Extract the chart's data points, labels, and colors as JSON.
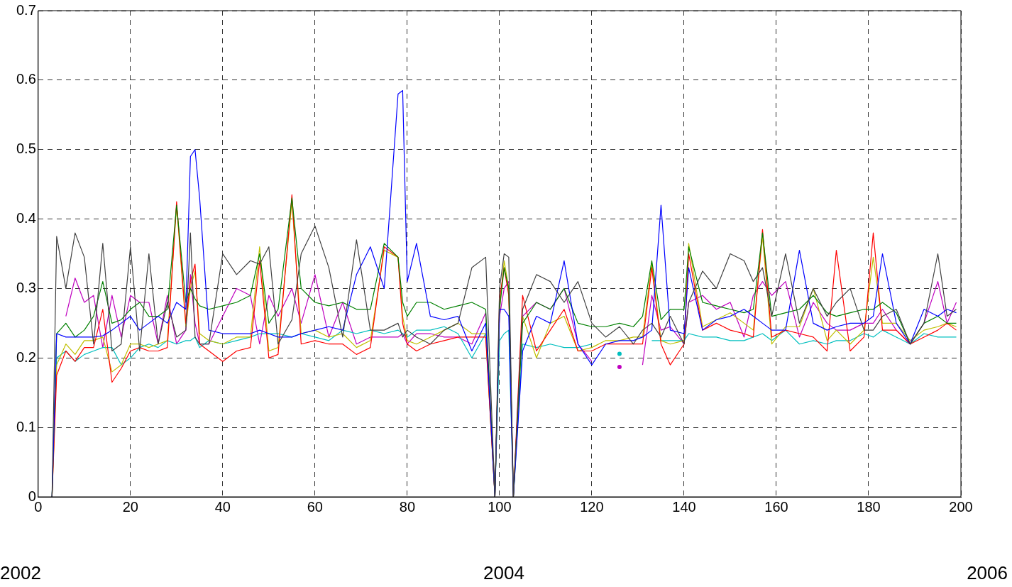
{
  "chart_data": {
    "type": "line",
    "x": [
      3,
      4,
      6,
      8,
      10,
      12,
      14,
      16,
      18,
      20,
      22,
      24,
      26,
      28,
      30,
      32,
      33,
      34,
      35,
      37,
      40,
      43,
      46,
      48,
      50,
      52,
      55,
      57,
      60,
      63,
      66,
      69,
      72,
      75,
      78,
      79,
      80,
      82,
      85,
      88,
      91,
      94,
      97,
      99,
      100,
      101,
      102,
      103,
      105,
      108,
      111,
      114,
      117,
      120,
      123,
      126,
      129,
      131,
      133,
      135,
      137,
      140,
      141,
      144,
      147,
      150,
      153,
      155,
      157,
      159,
      162,
      165,
      168,
      171,
      173,
      176,
      179,
      181,
      183,
      186,
      189,
      192,
      195,
      197,
      199
    ],
    "series": [
      {
        "color": "#404040",
        "values": [
          0,
          0.375,
          0.3,
          0.38,
          0.345,
          0.22,
          0.365,
          0.21,
          0.22,
          0.36,
          0.21,
          0.35,
          0.22,
          0.28,
          0.23,
          0.24,
          0.38,
          0.23,
          0.22,
          0.22,
          0.35,
          0.32,
          0.34,
          0.335,
          0.36,
          0.22,
          0.255,
          0.35,
          0.39,
          0.33,
          0.23,
          0.37,
          0.24,
          0.24,
          0.25,
          0.23,
          0.24,
          0.23,
          0.22,
          0.24,
          0.25,
          0.33,
          0.345,
          0,
          0.3,
          0.35,
          0.345,
          0,
          0.27,
          0.32,
          0.31,
          0.28,
          0.31,
          0.25,
          0.23,
          0.245,
          0.22,
          0.24,
          0.25,
          0.23,
          0.26,
          0.22,
          0.28,
          0.325,
          0.3,
          0.35,
          0.34,
          0.31,
          0.33,
          0.26,
          0.35,
          0.25,
          0.3,
          0.26,
          0.28,
          0.3,
          0.24,
          0.24,
          0.26,
          0.27,
          0.22,
          0.25,
          0.35,
          0.26,
          0.27
        ]
      },
      {
        "color": "#0000ff",
        "values": [
          0,
          0.235,
          0.23,
          0.23,
          0.23,
          0.23,
          0.232,
          0.24,
          0.25,
          0.26,
          0.24,
          0.25,
          0.26,
          0.25,
          0.28,
          0.27,
          0.49,
          0.5,
          0.43,
          0.24,
          0.235,
          0.235,
          0.235,
          0.24,
          0.235,
          0.23,
          0.23,
          0.235,
          0.24,
          0.245,
          0.24,
          0.32,
          0.36,
          0.3,
          0.58,
          0.585,
          0.31,
          0.365,
          0.26,
          0.255,
          0.26,
          0.21,
          0.25,
          0,
          0.27,
          0.27,
          0.26,
          0,
          0.21,
          0.26,
          0.25,
          0.34,
          0.22,
          0.19,
          0.22,
          0.225,
          0.225,
          0.23,
          0.24,
          0.42,
          0.24,
          0.235,
          0.33,
          0.24,
          0.255,
          0.26,
          0.27,
          0.26,
          0.25,
          0.24,
          0.24,
          0.355,
          0.25,
          0.24,
          0.245,
          0.25,
          0.25,
          0.26,
          0.35,
          0.25,
          0.22,
          0.27,
          0.26,
          0.27,
          0.265
        ]
      },
      {
        "color": "#008000",
        "values": [
          0,
          0.235,
          0.25,
          0.23,
          0.24,
          0.26,
          0.31,
          0.25,
          0.255,
          0.27,
          0.28,
          0.26,
          0.26,
          0.27,
          0.42,
          0.28,
          0.3,
          0.285,
          0.275,
          0.27,
          0.275,
          0.28,
          0.29,
          0.35,
          0.25,
          0.27,
          0.43,
          0.3,
          0.28,
          0.275,
          0.28,
          0.27,
          0.27,
          0.365,
          0.345,
          0.28,
          0.26,
          0.28,
          0.28,
          0.27,
          0.275,
          0.28,
          0.27,
          0,
          0.27,
          0.33,
          0.3,
          0,
          0.25,
          0.28,
          0.27,
          0.3,
          0.25,
          0.245,
          0.245,
          0.25,
          0.245,
          0.26,
          0.34,
          0.255,
          0.27,
          0.27,
          0.36,
          0.28,
          0.275,
          0.27,
          0.265,
          0.27,
          0.38,
          0.26,
          0.265,
          0.27,
          0.29,
          0.265,
          0.26,
          0.265,
          0.27,
          0.27,
          0.28,
          0.265,
          0.22,
          0.25,
          0.26,
          0.25,
          0.25
        ]
      },
      {
        "color": "#ff0000",
        "values": [
          0,
          0.175,
          0.21,
          0.195,
          0.215,
          0.215,
          0.27,
          0.165,
          0.185,
          0.21,
          0.215,
          0.21,
          0.21,
          0.215,
          0.425,
          0.25,
          0.31,
          0.335,
          0.22,
          0.21,
          0.195,
          0.21,
          0.215,
          0.34,
          0.2,
          0.205,
          0.435,
          0.22,
          0.225,
          0.22,
          0.22,
          0.205,
          0.215,
          0.36,
          0.345,
          0.25,
          0.22,
          0.21,
          0.22,
          0.225,
          0.23,
          0.23,
          0.23,
          0,
          0.285,
          0.33,
          0.29,
          0,
          0.29,
          0.21,
          0.24,
          0.27,
          0.21,
          0.21,
          0.22,
          0.22,
          0.22,
          0.22,
          0.33,
          0.22,
          0.19,
          0.22,
          0.35,
          0.24,
          0.25,
          0.24,
          0.235,
          0.23,
          0.385,
          0.23,
          0.24,
          0.235,
          0.23,
          0.21,
          0.355,
          0.21,
          0.23,
          0.38,
          0.24,
          0.24,
          0.22,
          0.23,
          0.24,
          0.25,
          0.24
        ]
      },
      {
        "color": "#bfbf00",
        "values": [
          0,
          0.19,
          0.22,
          0.205,
          0.225,
          0.225,
          0.23,
          0.18,
          0.19,
          0.22,
          0.22,
          0.215,
          0.22,
          0.225,
          0.42,
          0.245,
          0.3,
          0.325,
          0.235,
          0.225,
          0.22,
          0.23,
          0.23,
          0.36,
          0.21,
          0.215,
          0.425,
          0.235,
          0.24,
          0.23,
          0.235,
          0.215,
          0.225,
          0.355,
          0.345,
          0.26,
          0.225,
          0.22,
          0.23,
          0.24,
          0.25,
          0.235,
          0.235,
          0,
          0.27,
          0.34,
          0.3,
          0,
          0.26,
          0.2,
          0.25,
          0.26,
          0.21,
          0.215,
          0.225,
          0.225,
          0.23,
          0.23,
          0.335,
          0.225,
          0.22,
          0.225,
          0.365,
          0.245,
          0.255,
          0.265,
          0.25,
          0.24,
          0.375,
          0.22,
          0.245,
          0.245,
          0.3,
          0.225,
          0.24,
          0.22,
          0.24,
          0.345,
          0.25,
          0.25,
          0.225,
          0.24,
          0.245,
          0.25,
          0.245
        ]
      },
      {
        "color": "#00bfbf",
        "values": [
          0,
          0.2,
          0.21,
          0.195,
          0.205,
          0.21,
          0.215,
          0.215,
          0.19,
          0.2,
          0.215,
          0.22,
          0.215,
          0.225,
          0.22,
          0.225,
          0.225,
          0.23,
          0.215,
          0.225,
          0.22,
          0.225,
          0.23,
          0.235,
          0.235,
          0.235,
          0.23,
          0.235,
          0.23,
          0.225,
          0.24,
          0.235,
          0.24,
          0.235,
          0.24,
          0.235,
          0.23,
          0.24,
          0.24,
          0.245,
          0.235,
          0.2,
          0.235,
          0,
          0.225,
          0.235,
          0.24,
          0,
          0.22,
          0.215,
          0.22,
          0.215,
          0.215,
          0.22,
          null,
          0.206,
          null,
          null,
          0.225,
          0.225,
          0.225,
          0.225,
          0.235,
          0.23,
          0.23,
          0.225,
          0.225,
          0.23,
          0.235,
          0.225,
          0.24,
          0.22,
          0.225,
          0.22,
          0.225,
          0.225,
          0.235,
          0.23,
          0.24,
          0.23,
          0.22,
          0.235,
          0.23,
          0.23,
          0.23
        ]
      },
      {
        "color": "#bf00bf",
        "values": [
          null,
          null,
          0.26,
          0.315,
          0.28,
          0.29,
          0.215,
          0.29,
          0.23,
          0.29,
          0.28,
          0.28,
          0.22,
          0.29,
          0.22,
          0.24,
          0.32,
          0.25,
          0.22,
          0.22,
          0.26,
          0.3,
          0.29,
          0.22,
          0.29,
          0.26,
          0.3,
          0.25,
          0.32,
          0.23,
          0.28,
          0.22,
          0.23,
          0.23,
          0.23,
          0.235,
          0.22,
          0.235,
          0.235,
          0.23,
          0.23,
          0.22,
          0.265,
          0,
          0.26,
          0.3,
          0.31,
          0,
          0.26,
          0.28,
          0.27,
          0.3,
          0.22,
          0.195,
          null,
          0.187,
          null,
          0.19,
          0.29,
          0.24,
          0.245,
          0.22,
          0.28,
          0.29,
          0.27,
          0.28,
          0.23,
          0.29,
          0.31,
          0.29,
          0.31,
          0.23,
          0.28,
          0.25,
          0.24,
          0.24,
          0.25,
          0.25,
          0.27,
          0.24,
          0.22,
          0.25,
          0.31,
          0.25,
          0.28
        ]
      }
    ],
    "xlim": [
      0,
      200
    ],
    "xticks": [
      0,
      20,
      40,
      60,
      80,
      100,
      120,
      140,
      160,
      180,
      200
    ],
    "ylim": [
      0,
      0.7
    ],
    "yticks": [
      0,
      0.1,
      0.2,
      0.3,
      0.4,
      0.5,
      0.6,
      0.7
    ],
    "grid": true,
    "line_style": "solid",
    "legend": false,
    "annotations": [
      "2002",
      "2004",
      "2006"
    ]
  }
}
